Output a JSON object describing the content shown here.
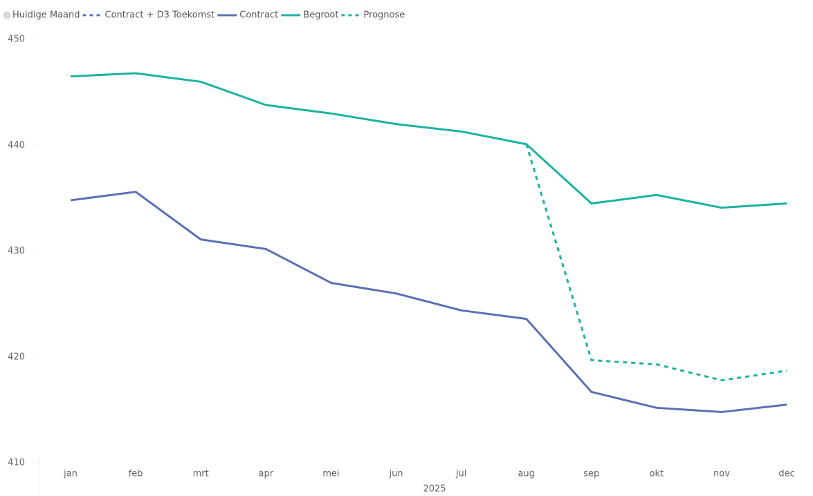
{
  "chart_data": {
    "type": "line",
    "categories": [
      "jan",
      "feb",
      "mrt",
      "apr",
      "mei",
      "jun",
      "jul",
      "aug",
      "sep",
      "okt",
      "nov",
      "dec"
    ],
    "x_label": "2025",
    "series": [
      {
        "name": "Huidige Maand",
        "color": "#d9d9d9",
        "marker": "circle",
        "values": [
          null,
          null,
          null,
          null,
          null,
          null,
          null,
          null,
          null,
          null,
          null,
          null
        ]
      },
      {
        "name": "Contract + D3 Toekomst",
        "color": "#5b6fb5",
        "dash": true,
        "values": [
          null,
          null,
          null,
          null,
          null,
          null,
          null,
          null,
          null,
          null,
          null,
          null
        ]
      },
      {
        "name": "Contract",
        "color": "#5b6fb5",
        "dash": false,
        "values": [
          434.8,
          435.6,
          431.1,
          430.2,
          427.0,
          426.0,
          424.4,
          423.6,
          416.7,
          415.2,
          414.8,
          415.5
        ]
      },
      {
        "name": "Begroot",
        "color": "#1ab39f",
        "dash": false,
        "values": [
          446.5,
          446.8,
          446.0,
          443.8,
          443.0,
          442.0,
          441.3,
          440.1,
          434.5,
          435.3,
          434.1,
          434.5
        ]
      },
      {
        "name": "Prognose",
        "color": "#1ab39f",
        "dash": true,
        "values": [
          null,
          null,
          null,
          null,
          null,
          null,
          null,
          440.1,
          419.7,
          419.3,
          417.8,
          418.7
        ]
      }
    ],
    "ylim": [
      410,
      450
    ],
    "yticks": [
      410,
      420,
      430,
      440,
      450
    ],
    "grid": false
  }
}
